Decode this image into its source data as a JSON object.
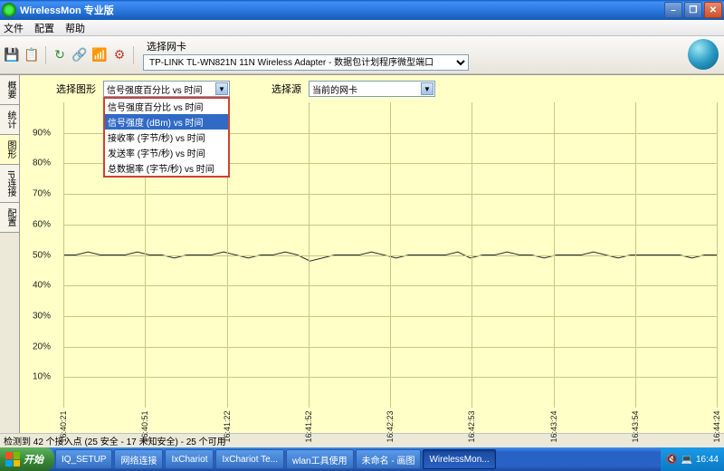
{
  "window": {
    "title": "WirelessMon 专业版"
  },
  "menu": {
    "file": "文件",
    "config": "配置",
    "help": "帮助"
  },
  "toolbar": {
    "netcard_label": "选择网卡",
    "netcard_value": "TP-LINK TL-WN821N 11N Wireless Adapter - 数据包计划程序微型端口"
  },
  "dropdowns": {
    "chart_label": "选择图形",
    "chart_value": "信号强度百分比 vs 时间",
    "source_label": "选择源",
    "source_value": "当前的网卡",
    "options": [
      "信号强度百分比 vs 时间",
      "信号强度 (dBm) vs 时间",
      "接收率 (字节/秒) vs 时间",
      "发送率 (字节/秒) vs 时间",
      "总数据率 (字节/秒) vs 时间"
    ],
    "selected_index": 1
  },
  "chart": {
    "bg_color": "#fffec8",
    "grid_color": "#c8c880",
    "line_color": "#2a2a2a",
    "ylim": [
      0,
      100
    ],
    "ytick_step": 10,
    "ylabels": [
      "10%",
      "20%",
      "30%",
      "40%",
      "50%",
      "60%",
      "70%",
      "80%",
      "90%"
    ],
    "xlabels": [
      "16:40:21",
      "16:40:51",
      "16:41:22",
      "16:41:52",
      "16:42:23",
      "16:42:53",
      "16:43:24",
      "16:43:54",
      "16:44:24"
    ],
    "series": [
      50,
      50,
      51,
      50,
      50,
      50,
      51,
      50,
      50,
      49,
      50,
      50,
      50,
      51,
      50,
      49,
      50,
      50,
      51,
      50,
      48,
      49,
      50,
      50,
      50,
      51,
      50,
      49,
      50,
      50,
      50,
      50,
      51,
      49,
      50,
      50,
      51,
      50,
      50,
      49,
      50,
      50,
      50,
      51,
      50,
      49,
      50,
      50,
      50,
      50,
      50,
      49,
      50,
      50
    ]
  },
  "sidetabs": [
    "概要",
    "统计",
    "图形",
    "IP连接",
    "配置"
  ],
  "status": "检测到 42 个接入点 (25 安全 - 17 未知安全) - 25 个可用",
  "taskbar": {
    "start": "开始",
    "items": [
      "IQ_SETUP",
      "网络连接",
      "IxChariot",
      "IxChariot Te...",
      "wlan工具使用",
      "未命名 - 画图",
      "WirelessMon..."
    ],
    "active_index": 6,
    "time": "16:44"
  }
}
